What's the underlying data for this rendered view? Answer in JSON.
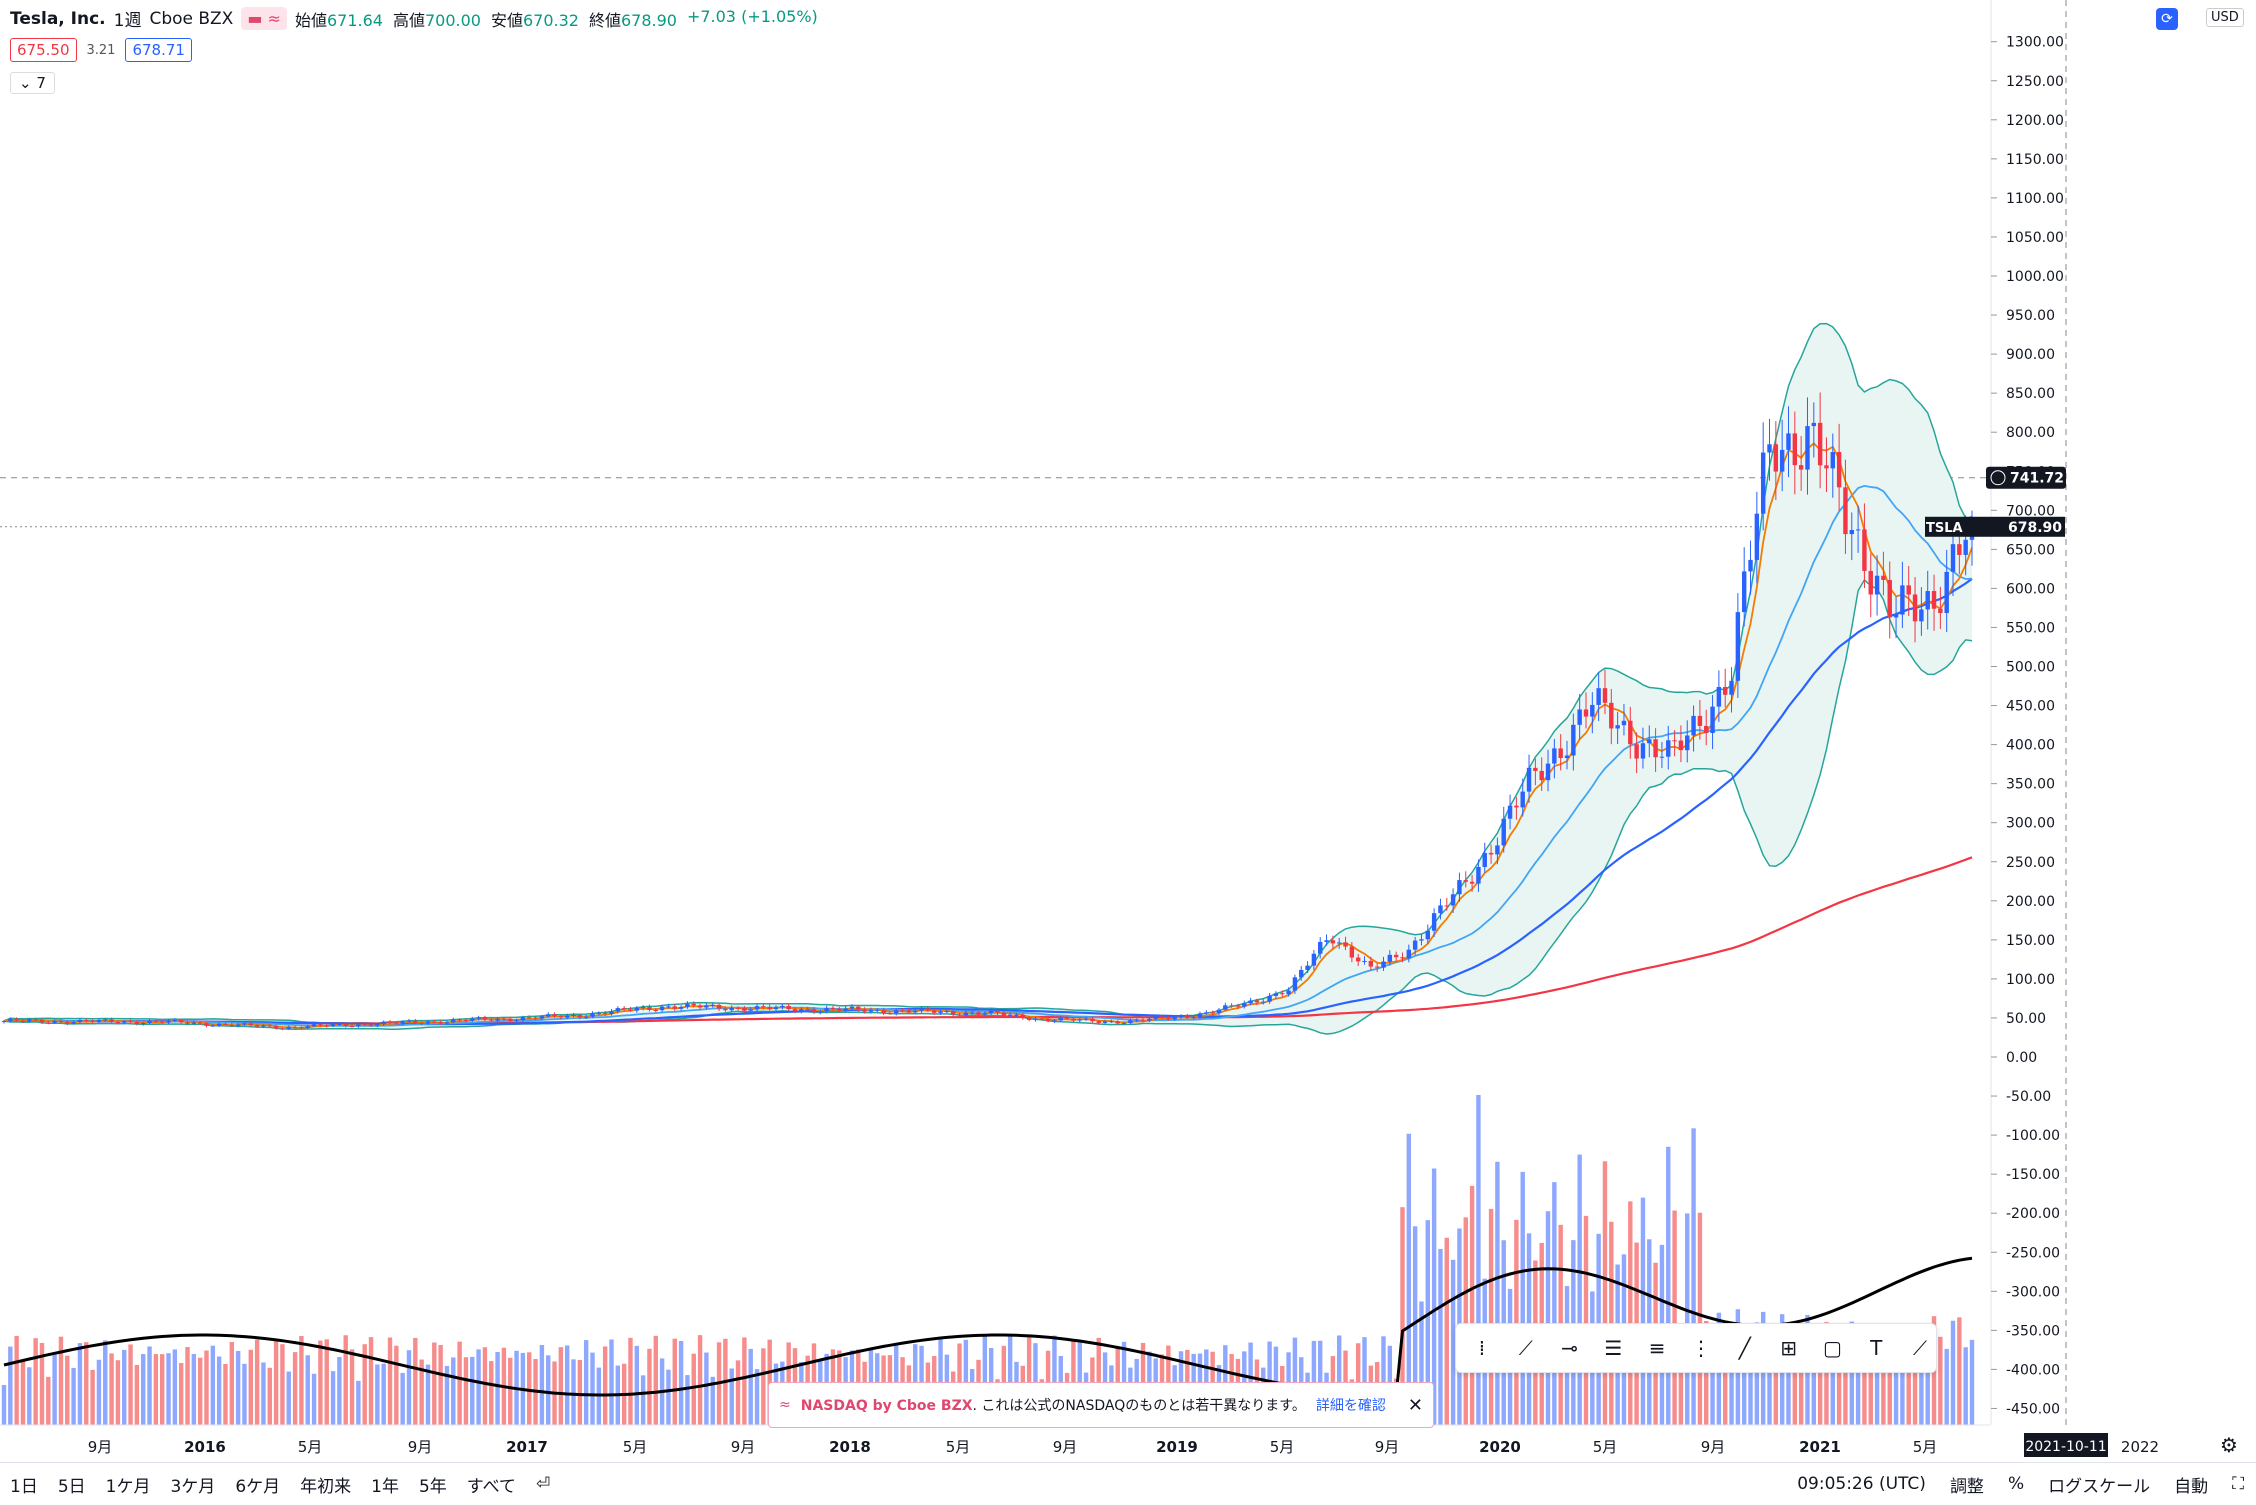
{
  "legend": {
    "symbol": "Tesla, Inc.",
    "interval": "1週",
    "exchange": "Cboe BZX",
    "open_label": "始値",
    "open": "671.64",
    "high_label": "高値",
    "high": "700.00",
    "low_label": "安値",
    "low": "670.32",
    "close_label": "終値",
    "close": "678.90",
    "change": "+7.03 (+1.05%)",
    "bid": "675.50",
    "spread": "3.21",
    "ask": "678.71",
    "collapse": "7"
  },
  "currency": "USD",
  "price_axis": [
    "1300.00",
    "1250.00",
    "1200.00",
    "1150.00",
    "1100.00",
    "1050.00",
    "1000.00",
    "950.00",
    "900.00",
    "850.00",
    "800.00",
    "750.00",
    "700.00",
    "650.00",
    "600.00",
    "550.00",
    "500.00",
    "450.00",
    "400.00",
    "350.00",
    "300.00",
    "250.00",
    "200.00",
    "150.00",
    "100.00",
    "50.00",
    "0.00",
    "-50.00",
    "-100.00",
    "-150.00",
    "-200.00",
    "-250.00",
    "-300.00",
    "-350.00",
    "-400.00",
    "-450.00"
  ],
  "crosshair_price": "741.72",
  "last_price_label": "TSLA",
  "last_price": "678.90",
  "time_axis": [
    "9月",
    "2016",
    "5月",
    "9月",
    "2017",
    "5月",
    "9月",
    "2018",
    "5月",
    "9月",
    "2019",
    "5月",
    "9月",
    "2020",
    "5月",
    "9月",
    "2021",
    "5月"
  ],
  "crosshair_date": "2021-10-11",
  "time_axis_extra": "2022",
  "notice": {
    "brand": "NASDAQ by Cboe BZX",
    "text": ". これは公式のNASDAQのものとは若干異なります。",
    "link": "詳細を確認"
  },
  "ranges": [
    "1日",
    "5日",
    "1ケ月",
    "3ケ月",
    "6ケ月",
    "年初来",
    "1年",
    "5年",
    "すべて"
  ],
  "time_display": "09:05:26 (UTC)",
  "options": [
    "調整",
    "%",
    "ログスケール",
    "自動"
  ],
  "colors": {
    "up": "#2962ff",
    "down": "#f23645",
    "ma_fast": "#f57c00",
    "ma_mid": "#42a5f5",
    "ma_slow": "#2962ff",
    "ma_200": "#f23645",
    "bb": "#26a69a"
  },
  "chart_data": {
    "type": "candlestick",
    "x_start": "2015-07",
    "x_end": "2021-07",
    "close_anchors": [
      [
        0,
        46
      ],
      [
        40,
        45
      ],
      [
        70,
        38
      ],
      [
        100,
        44
      ],
      [
        140,
        52
      ],
      [
        165,
        65
      ],
      [
        190,
        62
      ],
      [
        215,
        60
      ],
      [
        245,
        56
      ],
      [
        260,
        48
      ],
      [
        280,
        45
      ],
      [
        300,
        56
      ],
      [
        320,
        85
      ],
      [
        330,
        160
      ],
      [
        340,
        110
      ],
      [
        350,
        140
      ],
      [
        365,
        230
      ],
      [
        380,
        350
      ],
      [
        395,
        450
      ],
      [
        415,
        380
      ],
      [
        430,
        490
      ],
      [
        440,
        800
      ],
      [
        450,
        780
      ],
      [
        460,
        690
      ],
      [
        470,
        560
      ],
      [
        480,
        590
      ],
      [
        490,
        679
      ]
    ],
    "last_close": 678.9,
    "ylim": [
      -470,
      1340
    ]
  }
}
